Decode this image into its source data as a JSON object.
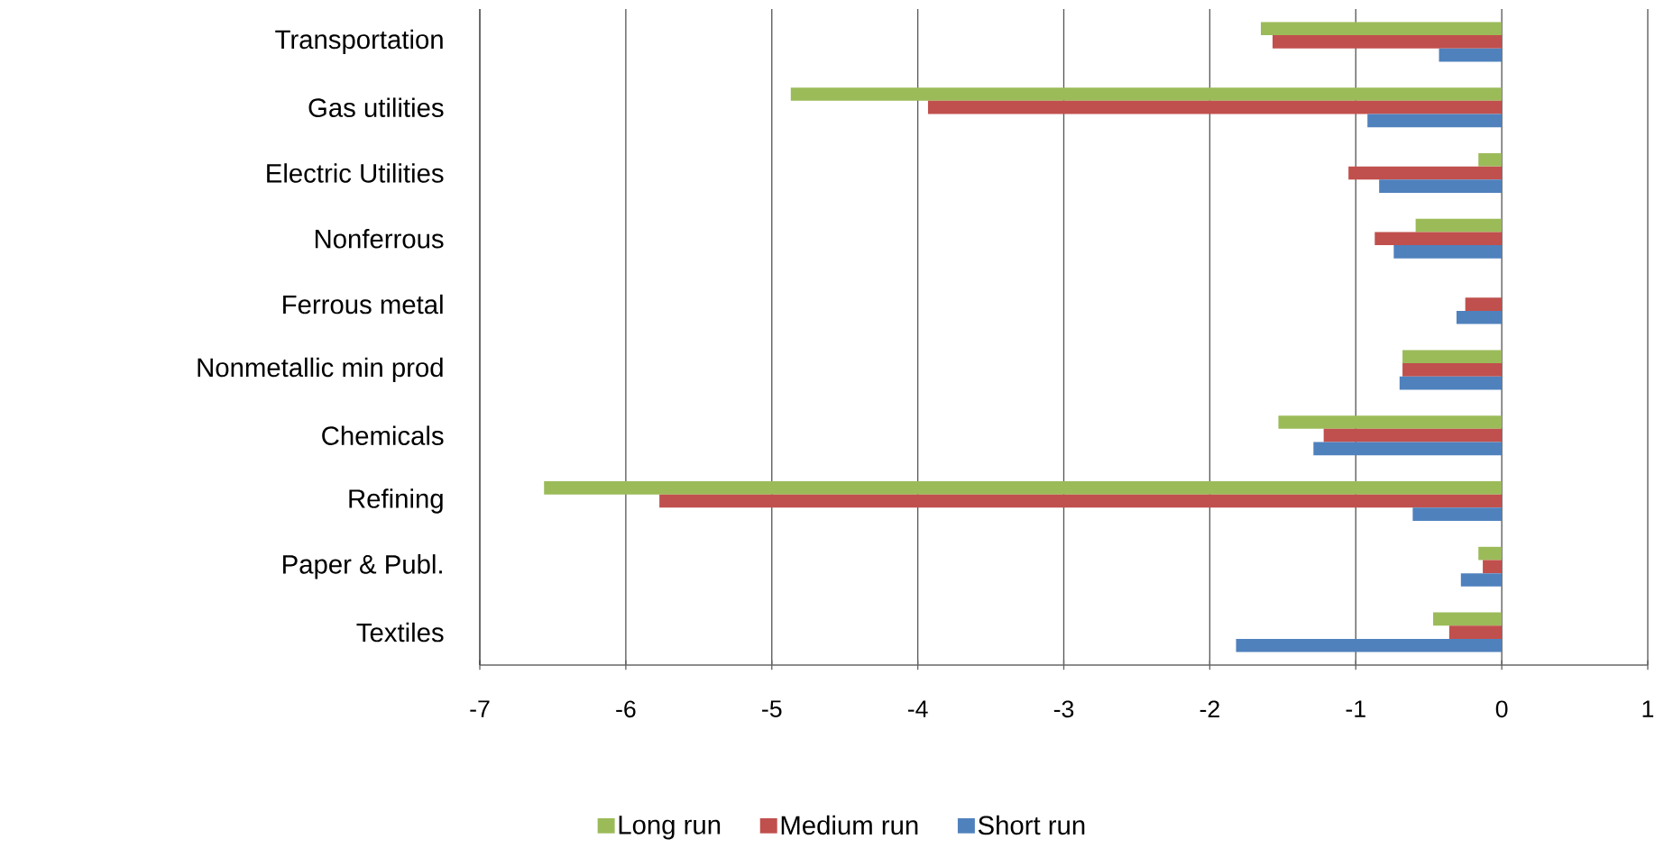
{
  "chart_data": {
    "type": "bar",
    "orientation": "horizontal",
    "categories": [
      "Transportation",
      "Gas utilities",
      "Electric Utilities",
      "Nonferrous",
      "Ferrous metal",
      "Nonmetallic min prod",
      "Chemicals",
      "Refining",
      "Paper & Publ.",
      "Textiles"
    ],
    "series": [
      {
        "name": "Long run",
        "color": "#9bbb59",
        "values": [
          -1.65,
          -4.87,
          -0.16,
          -0.59,
          0,
          -0.68,
          -1.53,
          -6.56,
          -0.16,
          -0.47
        ]
      },
      {
        "name": "Medium run",
        "color": "#c0504d",
        "values": [
          -1.57,
          -3.93,
          -1.05,
          -0.87,
          -0.25,
          -0.68,
          -1.22,
          -5.77,
          -0.13,
          -0.36
        ]
      },
      {
        "name": "Short run",
        "color": "#4f81bd",
        "values": [
          -0.43,
          -0.92,
          -0.84,
          -0.74,
          -0.31,
          -0.7,
          -1.29,
          -0.61,
          -0.28,
          -1.82
        ]
      }
    ],
    "xlim": [
      -7,
      1
    ],
    "xticks": [
      -7,
      -6,
      -5,
      -4,
      -3,
      -2,
      -1,
      0,
      1
    ],
    "grid": "x",
    "legend": "bottom"
  }
}
